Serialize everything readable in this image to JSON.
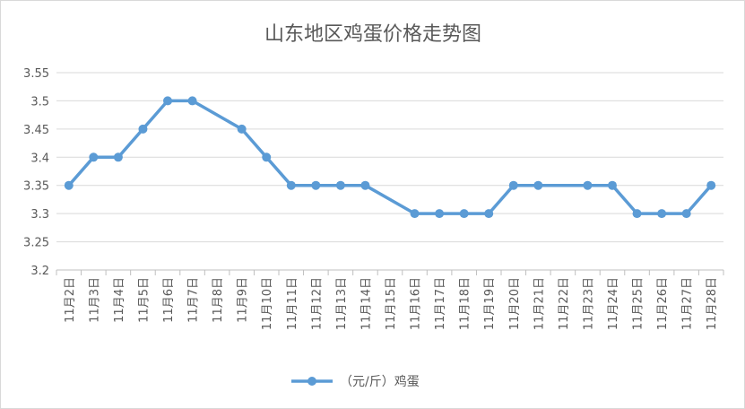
{
  "chart_data": {
    "type": "line",
    "title": "山东地区鸡蛋价格走势图",
    "xlabel": "",
    "ylabel": "",
    "ylim": [
      3.2,
      3.55
    ],
    "y_ticks": [
      "3.2",
      "3.25",
      "3.3",
      "3.35",
      "3.4",
      "3.45",
      "3.5",
      "3.55"
    ],
    "y_tick_values": [
      3.2,
      3.25,
      3.3,
      3.35,
      3.4,
      3.45,
      3.5,
      3.55
    ],
    "grid": "horizontal",
    "legend_position": "bottom",
    "categories": [
      "11月2日",
      "11月3日",
      "11月4日",
      "11月5日",
      "11月6日",
      "11月7日",
      "11月8日",
      "11月9日",
      "11月10日",
      "11月11日",
      "11月12日",
      "11月13日",
      "11月14日",
      "11月15日",
      "11月16日",
      "11月17日",
      "11月18日",
      "11月19日",
      "11月20日",
      "11月21日",
      "11月22日",
      "11月23日",
      "11月24日",
      "11月25日",
      "11月26日",
      "11月27日",
      "11月28日"
    ],
    "series": [
      {
        "name": "（元/斤）鸡蛋",
        "color": "#5b9bd5",
        "values": [
          3.35,
          3.4,
          3.4,
          3.45,
          3.5,
          3.5,
          null,
          3.45,
          3.4,
          3.35,
          3.35,
          3.35,
          3.35,
          null,
          3.3,
          3.3,
          3.3,
          3.3,
          3.35,
          3.35,
          null,
          3.35,
          3.35,
          3.3,
          3.3,
          3.3,
          3.35
        ]
      }
    ]
  }
}
